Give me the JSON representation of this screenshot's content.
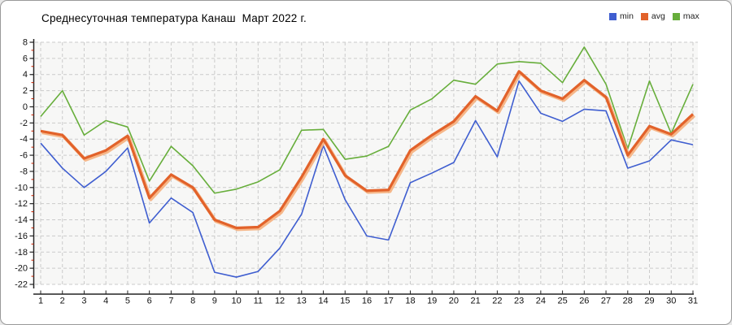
{
  "window": {
    "background": "#ffffff",
    "border_color": "#999999"
  },
  "chart_data": {
    "type": "line",
    "title": "Среднесуточная температура Канаш  Март 2022 г.",
    "xlabel": "",
    "ylabel": "",
    "x": [
      1,
      2,
      3,
      4,
      5,
      6,
      7,
      8,
      9,
      10,
      11,
      12,
      13,
      14,
      15,
      16,
      17,
      18,
      19,
      20,
      21,
      22,
      23,
      24,
      25,
      26,
      27,
      28,
      29,
      30,
      31
    ],
    "ylim": [
      -22,
      8
    ],
    "ytick_step": 2,
    "grid": true,
    "legend_position": "top-right",
    "plot_background": "#f7f7f6",
    "gridline_color": "#cbcbcb",
    "axis_color": "#222222",
    "minor_tick_color": "#cc2200",
    "tick_label_color": "#111111",
    "series": [
      {
        "name": "min",
        "color": "#3f5ed0",
        "values": [
          -4.5,
          -7.6,
          -10.0,
          -8.0,
          -5.1,
          -14.4,
          -11.3,
          -13.1,
          -20.5,
          -21.1,
          -20.4,
          -17.5,
          -13.3,
          -4.8,
          -11.5,
          -16.0,
          -16.5,
          -9.4,
          -8.2,
          -6.9,
          -1.7,
          -6.2,
          3.2,
          -0.8,
          -1.8,
          -0.3,
          -0.5,
          -7.6,
          -6.7,
          -4.1,
          -4.7
        ]
      },
      {
        "name": "avg",
        "color": "#e2622a",
        "shadow_color": "#f6ab76",
        "values": [
          -3.0,
          -3.5,
          -6.4,
          -5.4,
          -3.6,
          -11.3,
          -8.4,
          -10.0,
          -14.0,
          -15.0,
          -14.9,
          -12.9,
          -8.7,
          -4.0,
          -8.5,
          -10.4,
          -10.3,
          -5.4,
          -3.5,
          -1.8,
          1.3,
          -0.5,
          4.4,
          2.0,
          1.0,
          3.3,
          1.2,
          -6.0,
          -2.4,
          -3.4,
          -0.9
        ]
      },
      {
        "name": "max",
        "color": "#67ae3b",
        "values": [
          -1.2,
          2.0,
          -3.5,
          -1.7,
          -2.5,
          -9.2,
          -4.9,
          -7.3,
          -10.7,
          -10.2,
          -9.3,
          -7.8,
          -2.9,
          -2.8,
          -6.5,
          -6.1,
          -4.9,
          -0.4,
          1.0,
          3.3,
          2.8,
          5.3,
          5.6,
          5.4,
          3.0,
          7.4,
          2.8,
          -5.2,
          3.2,
          -3.3,
          2.8
        ]
      }
    ]
  }
}
